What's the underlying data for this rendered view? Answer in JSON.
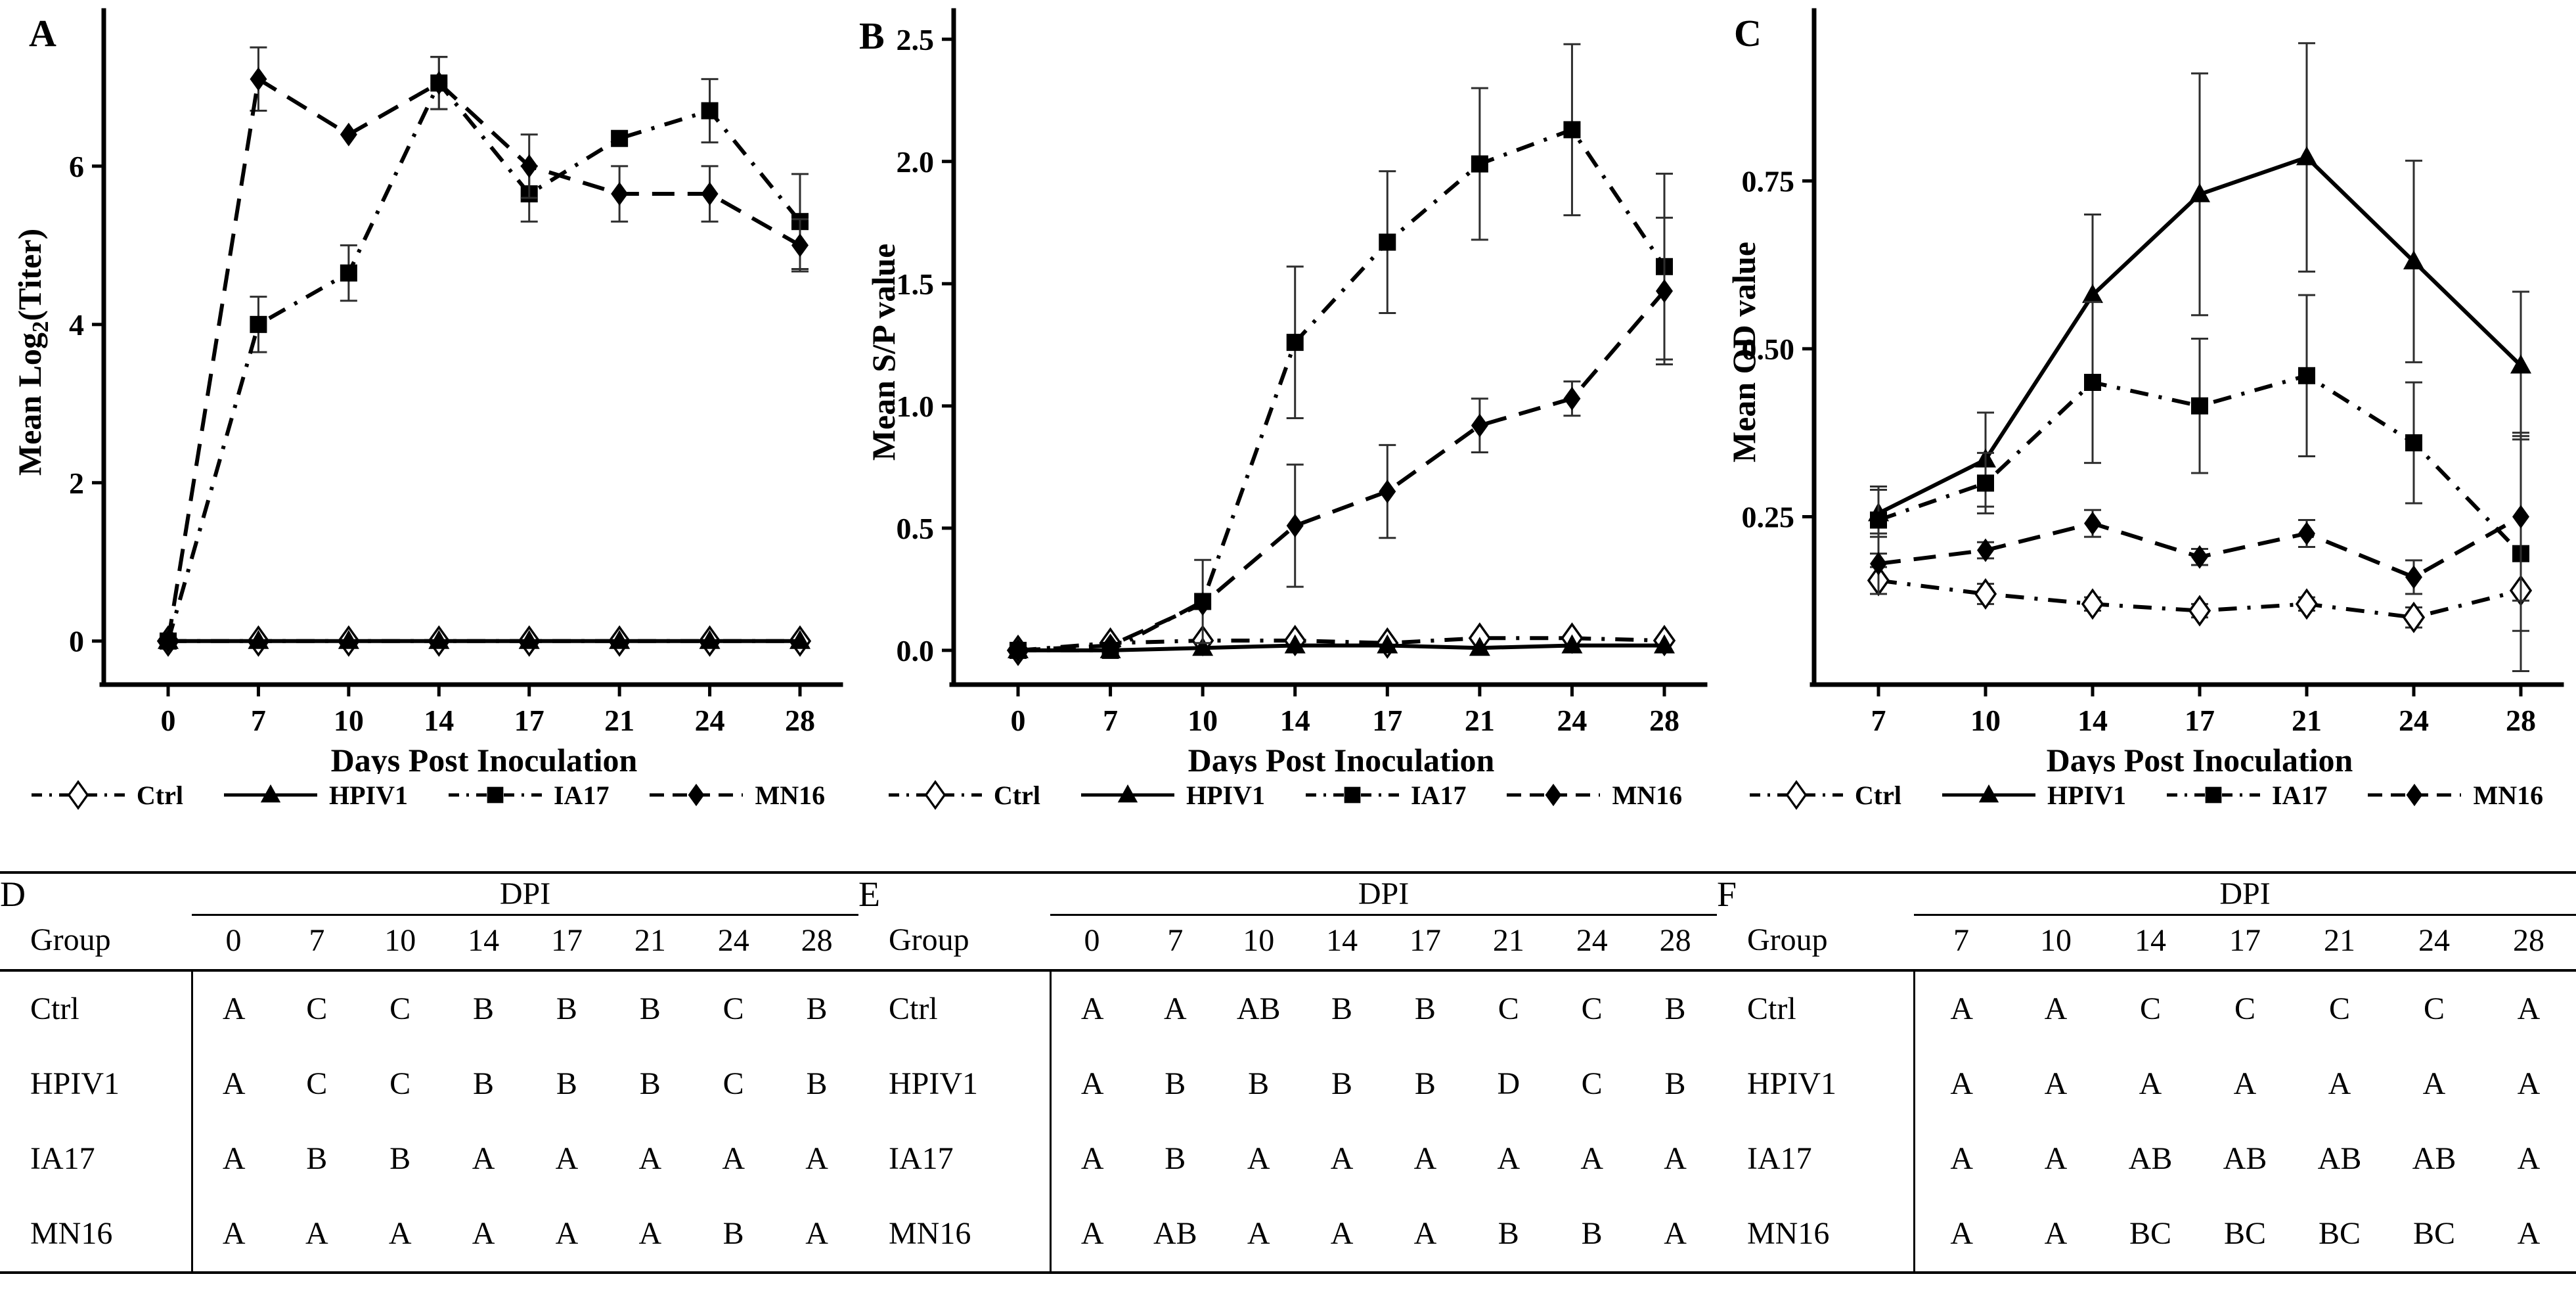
{
  "figure": {
    "xlabel": "Days Post Inoculation",
    "series_color": "#000000",
    "errorbar_color": "#2e2e2e",
    "legend": [
      {
        "label": "Ctrl",
        "marker": "diamond-open",
        "line": "dashdot"
      },
      {
        "label": "HPIV1",
        "marker": "triangle",
        "line": "solid"
      },
      {
        "label": "IA17",
        "marker": "square",
        "line": "dashdot"
      },
      {
        "label": "MN16",
        "marker": "diamond",
        "line": "dash"
      }
    ]
  },
  "chart_data": [
    {
      "panel": "A",
      "type": "line",
      "ylabel": "Mean Log2(Titer)",
      "ylabel_parts": [
        {
          "t": "Mean Log"
        },
        {
          "t": "2",
          "sub": true
        },
        {
          "t": "(Titer)"
        }
      ],
      "xlabel": "Days Post Inoculation",
      "x": [
        "0",
        "7",
        "10",
        "14",
        "17",
        "21",
        "24",
        "28"
      ],
      "ytick_values": [
        0,
        2,
        4,
        6
      ],
      "ytick_labels": [
        "0",
        "2",
        "4",
        "6"
      ],
      "ylim": [
        -0.55,
        7.85
      ],
      "grid": false,
      "legend_position": "bottom",
      "series": [
        {
          "name": "Ctrl",
          "marker": "diamond-open",
          "line": "dashdot",
          "values": [
            0,
            0,
            0,
            0,
            0,
            0,
            0,
            0
          ],
          "err": [
            0,
            0,
            0,
            0,
            0,
            0,
            0,
            0
          ]
        },
        {
          "name": "HPIV1",
          "marker": "triangle",
          "line": "solid",
          "values": [
            0,
            0,
            0,
            0,
            0,
            0,
            0,
            0
          ],
          "err": [
            0,
            0,
            0,
            0,
            0,
            0,
            0,
            0
          ]
        },
        {
          "name": "IA17",
          "marker": "square",
          "line": "dashdot",
          "values": [
            0,
            4.0,
            4.65,
            7.05,
            5.65,
            6.35,
            6.7,
            5.3
          ],
          "err": [
            0,
            0.35,
            0.35,
            0.33,
            0.35,
            0,
            0.4,
            0.6
          ]
        },
        {
          "name": "MN16",
          "marker": "diamond",
          "line": "dash",
          "values": [
            0,
            7.1,
            6.4,
            7.05,
            6.0,
            5.65,
            5.65,
            5.0
          ],
          "err": [
            0,
            0.4,
            0,
            0.33,
            0.4,
            0.35,
            0.35,
            0.33
          ]
        }
      ]
    },
    {
      "panel": "B",
      "type": "line",
      "ylabel": "Mean S/P value",
      "ylabel_parts": [
        {
          "t": "Mean S/P value"
        }
      ],
      "xlabel": "Days Post Inoculation",
      "x": [
        "0",
        "7",
        "10",
        "14",
        "17",
        "21",
        "24",
        "28"
      ],
      "ytick_values": [
        0.0,
        0.5,
        1.0,
        1.5,
        2.0,
        2.5
      ],
      "ytick_labels": [
        "0.0",
        "0.5",
        "1.0",
        "1.5",
        "2.0",
        "2.5"
      ],
      "ylim": [
        -0.14,
        2.58
      ],
      "grid": false,
      "legend_position": "bottom",
      "series": [
        {
          "name": "Ctrl",
          "marker": "diamond-open",
          "line": "dashdot",
          "values": [
            0,
            0.03,
            0.04,
            0.04,
            0.03,
            0.05,
            0.05,
            0.04
          ],
          "err": [
            0,
            0,
            0,
            0,
            0,
            0,
            0,
            0
          ]
        },
        {
          "name": "HPIV1",
          "marker": "triangle",
          "line": "solid",
          "values": [
            0,
            0,
            0.01,
            0.02,
            0.02,
            0.01,
            0.02,
            0.02
          ],
          "err": [
            0,
            0,
            0,
            0,
            0,
            0,
            0,
            0
          ]
        },
        {
          "name": "IA17",
          "marker": "square",
          "line": "dashdot",
          "values": [
            0,
            0,
            0.2,
            1.26,
            1.67,
            1.99,
            2.13,
            1.57
          ],
          "err": [
            0,
            0,
            0.17,
            0.31,
            0.29,
            0.31,
            0.35,
            0.38
          ]
        },
        {
          "name": "MN16",
          "marker": "diamond",
          "line": "dash",
          "values": [
            0,
            0.02,
            0.19,
            0.51,
            0.65,
            0.92,
            1.03,
            1.47
          ],
          "err": [
            0,
            0,
            0,
            0.25,
            0.19,
            0.11,
            0.07,
            0.3
          ]
        }
      ]
    },
    {
      "panel": "C",
      "type": "line",
      "ylabel": "Mean OD value",
      "ylabel_parts": [
        {
          "t": "Mean OD value"
        }
      ],
      "xlabel": "Days Post Inoculation",
      "x": [
        "7",
        "10",
        "14",
        "17",
        "21",
        "24",
        "28"
      ],
      "ytick_values": [
        0.25,
        0.5,
        0.75
      ],
      "ytick_labels": [
        "0.25",
        "0.50",
        "0.75"
      ],
      "ylim": [
        0.0,
        0.99
      ],
      "grid": false,
      "legend_position": "bottom",
      "series": [
        {
          "name": "Ctrl",
          "marker": "diamond-open",
          "line": "dashdot",
          "values": [
            0.155,
            0.135,
            0.12,
            0.11,
            0.12,
            0.1,
            0.14
          ],
          "err": [
            0.02,
            0.015,
            0.01,
            0.01,
            0.01,
            0.015,
            0.06
          ]
        },
        {
          "name": "HPIV1",
          "marker": "triangle",
          "line": "solid",
          "values": [
            0.255,
            0.335,
            0.58,
            0.73,
            0.785,
            0.63,
            0.475
          ],
          "err": [
            0.035,
            0.07,
            0.12,
            0.18,
            0.17,
            0.15,
            0.11
          ]
        },
        {
          "name": "IA17",
          "marker": "square",
          "line": "dashdot",
          "values": [
            0.245,
            0.3,
            0.45,
            0.415,
            0.46,
            0.36,
            0.195
          ],
          "err": [
            0.05,
            0.045,
            0.12,
            0.1,
            0.12,
            0.09,
            0.175
          ]
        },
        {
          "name": "MN16",
          "marker": "diamond",
          "line": "dash",
          "values": [
            0.18,
            0.2,
            0.24,
            0.19,
            0.225,
            0.16,
            0.25
          ],
          "err": [
            0.045,
            0.012,
            0.02,
            0.012,
            0.02,
            0.025,
            0.125
          ]
        }
      ]
    }
  ],
  "tables": [
    {
      "panel": "D",
      "header": "DPI",
      "group_label": "Group",
      "days": [
        "0",
        "7",
        "10",
        "14",
        "17",
        "21",
        "24",
        "28"
      ],
      "rows": [
        {
          "group": "Ctrl",
          "values": [
            "A",
            "C",
            "C",
            "B",
            "B",
            "B",
            "C",
            "B"
          ]
        },
        {
          "group": "HPIV1",
          "values": [
            "A",
            "C",
            "C",
            "B",
            "B",
            "B",
            "C",
            "B"
          ]
        },
        {
          "group": "IA17",
          "values": [
            "A",
            "B",
            "B",
            "A",
            "A",
            "A",
            "A",
            "A"
          ]
        },
        {
          "group": "MN16",
          "values": [
            "A",
            "A",
            "A",
            "A",
            "A",
            "A",
            "B",
            "A"
          ]
        }
      ]
    },
    {
      "panel": "E",
      "header": "DPI",
      "group_label": "Group",
      "days": [
        "0",
        "7",
        "10",
        "14",
        "17",
        "21",
        "24",
        "28"
      ],
      "rows": [
        {
          "group": "Ctrl",
          "values": [
            "A",
            "A",
            "AB",
            "B",
            "B",
            "C",
            "C",
            "B"
          ]
        },
        {
          "group": "HPIV1",
          "values": [
            "A",
            "B",
            "B",
            "B",
            "B",
            "D",
            "C",
            "B"
          ]
        },
        {
          "group": "IA17",
          "values": [
            "A",
            "B",
            "A",
            "A",
            "A",
            "A",
            "A",
            "A"
          ]
        },
        {
          "group": "MN16",
          "values": [
            "A",
            "AB",
            "A",
            "A",
            "A",
            "B",
            "B",
            "A"
          ]
        }
      ]
    },
    {
      "panel": "F",
      "header": "DPI",
      "group_label": "Group",
      "days": [
        "7",
        "10",
        "14",
        "17",
        "21",
        "24",
        "28"
      ],
      "rows": [
        {
          "group": "Ctrl",
          "values": [
            "A",
            "A",
            "C",
            "C",
            "C",
            "C",
            "A"
          ]
        },
        {
          "group": "HPIV1",
          "values": [
            "A",
            "A",
            "A",
            "A",
            "A",
            "A",
            "A"
          ]
        },
        {
          "group": "IA17",
          "values": [
            "A",
            "A",
            "AB",
            "AB",
            "AB",
            "AB",
            "A"
          ]
        },
        {
          "group": "MN16",
          "values": [
            "A",
            "A",
            "BC",
            "BC",
            "BC",
            "BC",
            "A"
          ]
        }
      ]
    }
  ]
}
